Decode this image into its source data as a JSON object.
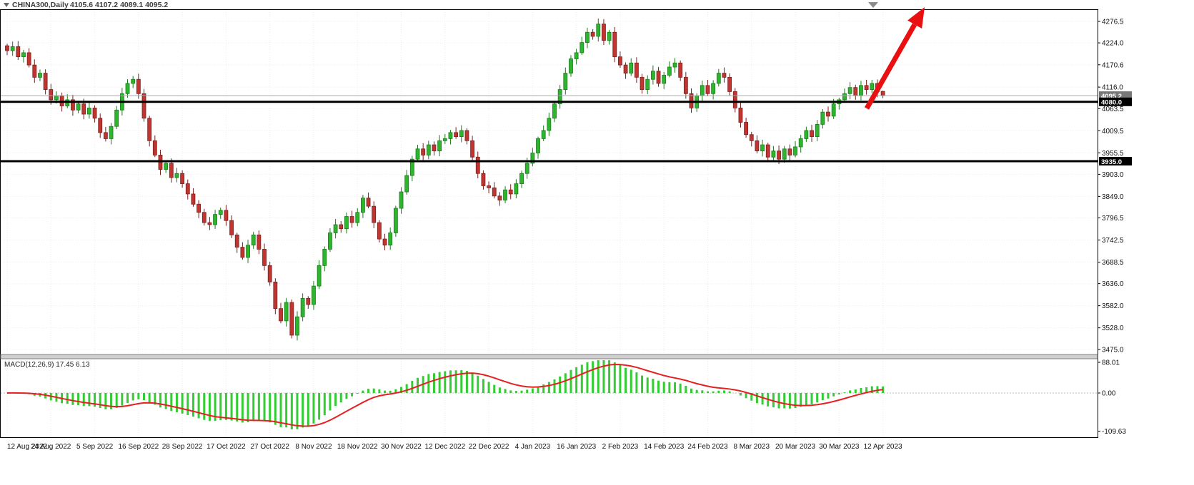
{
  "header": {
    "symbol_period": "CHINA300,Daily",
    "ohlc_text": "4105.6 4107.2 4089.1 4095.2"
  },
  "colors": {
    "up_fill": "#2eb52e",
    "up_stroke": "#1c7a1c",
    "down_fill": "#c13530",
    "down_stroke": "#7a1f1f",
    "macd_hist": "#33cc33",
    "macd_signal": "#e62020",
    "grid": "#ededed",
    "level_line": "#000000",
    "level_tag_bg": "#000000",
    "current_tag_bg": "#787878",
    "current_price_line": "#a8a8a8",
    "arrow": "#e81010",
    "border": "#000000",
    "separator": "#cfcfcf"
  },
  "chart_data": {
    "type": "candlestick",
    "title": "CHINA300,Daily",
    "symbol": "CHINA300",
    "timeframe": "Daily",
    "last_ohlc": {
      "open": 4105.6,
      "high": 4107.2,
      "low": 4089.1,
      "close": 4095.2
    },
    "current_price": 4095.2,
    "horizontal_lines": [
      4080.0,
      3935.0
    ],
    "y_axis_ticks": [
      4276.5,
      4224.0,
      4170.6,
      4116.0,
      4063.5,
      4009.5,
      3955.5,
      3903.0,
      3849.0,
      3796.5,
      3742.5,
      3688.5,
      3636.0,
      3582.0,
      3528.0,
      3475.0
    ],
    "ylim": [
      3463,
      4304
    ],
    "x_tick_labels": [
      "12 Aug 2022",
      "24 Aug 2022",
      "5 Sep 2022",
      "16 Sep 2022",
      "28 Sep 2022",
      "17 Oct 2022",
      "27 Oct 2022",
      "8 Nov 2022",
      "18 Nov 2022",
      "30 Nov 2022",
      "12 Dec 2022",
      "22 Dec 2022",
      "4 Jan 2023",
      "16 Jan 2023",
      "2 Feb 2023",
      "14 Feb 2023",
      "24 Feb 2023",
      "8 Mar 2023",
      "20 Mar 2023",
      "30 Mar 2023",
      "12 Apr 2023"
    ],
    "bars_per_x_tick": 8,
    "closes": [
      4205,
      4215,
      4190,
      4200,
      4170,
      4140,
      4150,
      4110,
      4085,
      4095,
      4070,
      4085,
      4060,
      4075,
      4050,
      4065,
      4040,
      4005,
      3990,
      4020,
      4060,
      4100,
      4125,
      4135,
      4100,
      4040,
      3985,
      3950,
      3915,
      3930,
      3895,
      3905,
      3880,
      3855,
      3830,
      3810,
      3785,
      3780,
      3805,
      3815,
      3790,
      3755,
      3725,
      3700,
      3730,
      3755,
      3720,
      3680,
      3640,
      3575,
      3545,
      3590,
      3510,
      3555,
      3600,
      3585,
      3630,
      3680,
      3720,
      3760,
      3780,
      3770,
      3800,
      3785,
      3810,
      3845,
      3825,
      3785,
      3745,
      3730,
      3760,
      3820,
      3860,
      3900,
      3940,
      3965,
      3950,
      3975,
      3960,
      3985,
      3990,
      4005,
      3995,
      4010,
      3985,
      3945,
      3905,
      3875,
      3870,
      3850,
      3840,
      3865,
      3855,
      3880,
      3905,
      3930,
      3955,
      3990,
      4010,
      4040,
      4075,
      4110,
      4150,
      4185,
      4200,
      4225,
      4250,
      4240,
      4270,
      4230,
      4250,
      4190,
      4170,
      4150,
      4175,
      4140,
      4110,
      4135,
      4155,
      4125,
      4145,
      4165,
      4175,
      4140,
      4100,
      4065,
      4095,
      4120,
      4100,
      4125,
      4150,
      4140,
      4105,
      4065,
      4030,
      4000,
      3985,
      3960,
      3975,
      3945,
      3960,
      3940,
      3965,
      3950,
      3970,
      3990,
      4010,
      3995,
      4025,
      4055,
      4045,
      4075,
      4085,
      4100,
      4115,
      4095,
      4120,
      4110,
      4125,
      4105,
      4095.2
    ],
    "macd_panel": {
      "type": "macd",
      "label": "MACD(12,26,9) 17.45 6.13",
      "fast": 12,
      "slow": 26,
      "signal_period": 9,
      "macd": 17.45,
      "signal": 6.13,
      "y_ticks": [
        88.01,
        0,
        -109.63
      ]
    },
    "annotation_arrow": {
      "direction": "up-right",
      "color": "#e81010"
    }
  }
}
